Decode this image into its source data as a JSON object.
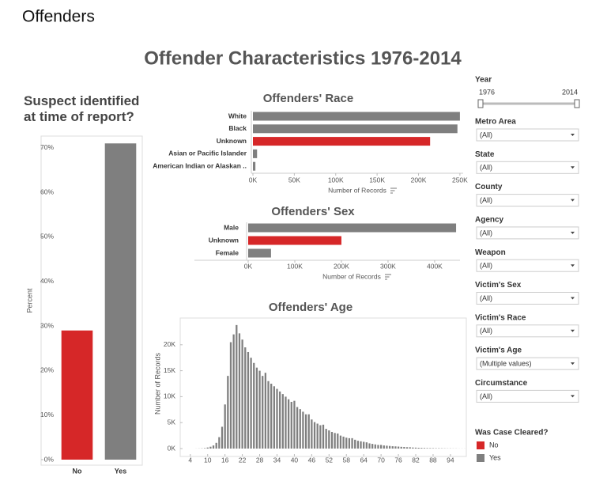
{
  "page_title": "Offenders",
  "dashboard_title": "Offender Characteristics 1976-2014",
  "chart_data": [
    {
      "type": "bar",
      "title": "Suspect identified at time of report?",
      "ylabel": "Percent",
      "categories": [
        "No",
        "Yes"
      ],
      "values": [
        29,
        71
      ],
      "colors": [
        "#d62728",
        "#7f7f7f"
      ],
      "ylim": [
        0,
        73
      ],
      "yticks": [
        {
          "value": 0,
          "label": "0%"
        },
        {
          "value": 10,
          "label": "10%"
        },
        {
          "value": 20,
          "label": "20%"
        },
        {
          "value": 30,
          "label": "30%"
        },
        {
          "value": 40,
          "label": "40%"
        },
        {
          "value": 50,
          "label": "50%"
        },
        {
          "value": 60,
          "label": "60%"
        },
        {
          "value": 70,
          "label": "70%"
        }
      ]
    },
    {
      "type": "hbar",
      "title": "Offenders' Race",
      "xlabel": "Number of Records",
      "categories": [
        "White",
        "Black",
        "Unknown",
        "Asian or Pacific Islander",
        "American Indian or Alaskan .."
      ],
      "values": [
        250000,
        247000,
        214000,
        5000,
        3000
      ],
      "colors": [
        "#7f7f7f",
        "#7f7f7f",
        "#d62728",
        "#7f7f7f",
        "#7f7f7f"
      ],
      "xlim": [
        0,
        252000
      ],
      "xticks": [
        {
          "value": 0,
          "label": "0K"
        },
        {
          "value": 50000,
          "label": "50K"
        },
        {
          "value": 100000,
          "label": "100K"
        },
        {
          "value": 150000,
          "label": "150K"
        },
        {
          "value": 200000,
          "label": "200K"
        },
        {
          "value": 250000,
          "label": "250K"
        }
      ]
    },
    {
      "type": "hbar",
      "title": "Offenders' Sex",
      "xlabel": "Number of Records",
      "categories": [
        "Male",
        "Unknown",
        "Female"
      ],
      "values": [
        446000,
        200000,
        49000
      ],
      "colors": [
        "#7f7f7f",
        "#d62728",
        "#7f7f7f"
      ],
      "xlim": [
        0,
        451000
      ],
      "xticks": [
        {
          "value": 0,
          "label": "0K"
        },
        {
          "value": 100000,
          "label": "100K"
        },
        {
          "value": 200000,
          "label": "200K"
        },
        {
          "value": 300000,
          "label": "300K"
        },
        {
          "value": 400000,
          "label": "400K"
        }
      ]
    },
    {
      "type": "bar",
      "title": "Offenders' Age",
      "ylabel": "Number of Records",
      "color": "#7f7f7f",
      "x": [
        1,
        2,
        3,
        4,
        5,
        6,
        7,
        8,
        9,
        10,
        11,
        12,
        13,
        14,
        15,
        16,
        17,
        18,
        19,
        20,
        21,
        22,
        23,
        24,
        25,
        26,
        27,
        28,
        29,
        30,
        31,
        32,
        33,
        34,
        35,
        36,
        37,
        38,
        39,
        40,
        41,
        42,
        43,
        44,
        45,
        46,
        47,
        48,
        49,
        50,
        51,
        52,
        53,
        54,
        55,
        56,
        57,
        58,
        59,
        60,
        61,
        62,
        63,
        64,
        65,
        66,
        67,
        68,
        69,
        70,
        71,
        72,
        73,
        74,
        75,
        76,
        77,
        78,
        79,
        80,
        81,
        82,
        83,
        84,
        85,
        86,
        87,
        88,
        89,
        90,
        91,
        92,
        93,
        94,
        95,
        96,
        97,
        98,
        99
      ],
      "values": [
        0,
        0,
        0,
        0,
        0,
        10,
        20,
        40,
        80,
        200,
        350,
        600,
        1100,
        2200,
        4200,
        8500,
        14000,
        20500,
        22000,
        23800,
        22200,
        21000,
        19500,
        18600,
        17500,
        16500,
        15600,
        15000,
        14000,
        14600,
        13000,
        12500,
        12000,
        11500,
        11000,
        10500,
        10000,
        9500,
        9000,
        9200,
        8000,
        7600,
        7100,
        6600,
        6600,
        5600,
        5100,
        4800,
        4500,
        4600,
        3800,
        3500,
        3200,
        3000,
        2900,
        2500,
        2300,
        2100,
        2000,
        2000,
        1700,
        1500,
        1400,
        1300,
        1200,
        1000,
        900,
        800,
        700,
        700,
        600,
        550,
        500,
        450,
        420,
        380,
        330,
        300,
        260,
        250,
        200,
        180,
        150,
        130,
        110,
        90,
        80,
        70,
        60,
        60,
        50,
        40,
        30,
        30,
        20,
        20,
        10,
        10,
        10
      ],
      "xlim": [
        0.5,
        99.5
      ],
      "xticks": [
        4,
        10,
        16,
        22,
        28,
        34,
        40,
        46,
        52,
        58,
        64,
        70,
        76,
        82,
        88,
        94
      ],
      "ylim": [
        0,
        25000
      ],
      "yticks": [
        {
          "value": 0,
          "label": "0K"
        },
        {
          "value": 5000,
          "label": "5K"
        },
        {
          "value": 10000,
          "label": "10K"
        },
        {
          "value": 15000,
          "label": "15K"
        },
        {
          "value": 20000,
          "label": "20K"
        }
      ]
    }
  ],
  "filters": {
    "year": {
      "label": "Year",
      "min": 1976,
      "max": 2014
    },
    "dropdowns": [
      {
        "label": "Metro Area",
        "value": "(All)"
      },
      {
        "label": "State",
        "value": "(All)"
      },
      {
        "label": "County",
        "value": "(All)"
      },
      {
        "label": "Agency",
        "value": "(All)"
      },
      {
        "label": "Weapon",
        "value": "(All)"
      },
      {
        "label": "Victim's Sex",
        "value": "(All)"
      },
      {
        "label": "Victim's Race",
        "value": "(All)"
      },
      {
        "label": "Victim's Age",
        "value": "(Multiple values)"
      },
      {
        "label": "Circumstance",
        "value": "(All)"
      }
    ]
  },
  "legend": {
    "title": "Was Case Cleared?",
    "items": [
      {
        "name": "No",
        "color": "#d62728"
      },
      {
        "name": "Yes",
        "color": "#7f7f7f"
      }
    ]
  }
}
